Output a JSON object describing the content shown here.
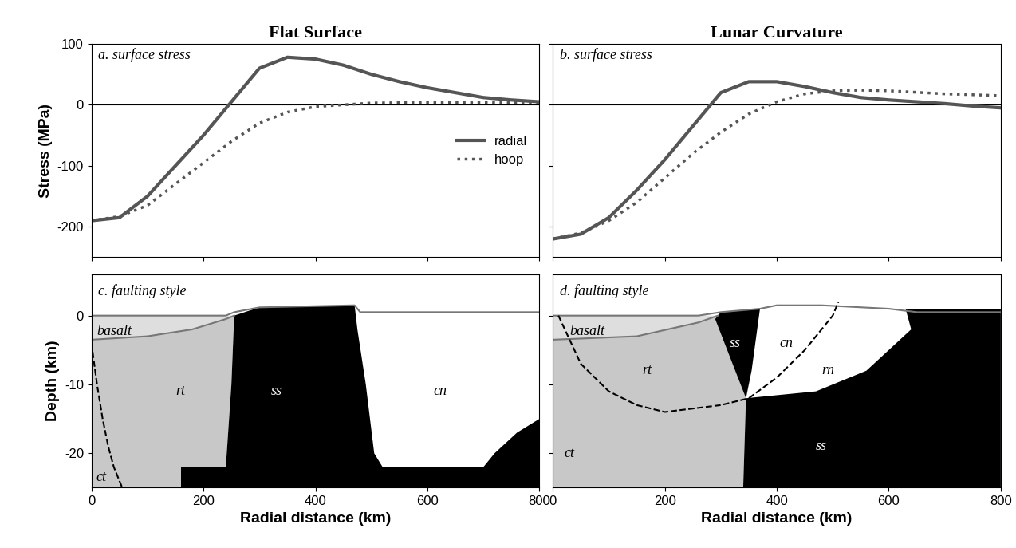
{
  "chart_data": [
    {
      "type": "line",
      "title": "Flat Surface",
      "ylabel": "Stress (MPa)",
      "xlim": [
        0,
        800
      ],
      "xticks": [
        0,
        200,
        400,
        600,
        800
      ],
      "ylim": [
        -250,
        100
      ],
      "yticks": [
        -200,
        -100,
        0,
        100
      ],
      "tick_labels": "y",
      "legend": "center right",
      "hlines": [
        0
      ],
      "annotations": [
        {
          "text": "a. surface stress",
          "x": 12,
          "y": 82,
          "color": "#000000"
        }
      ],
      "series": [
        {
          "name": "radial",
          "color": "#555555",
          "line_style": "solid",
          "x": [
            0,
            50,
            100,
            150,
            200,
            250,
            300,
            350,
            400,
            450,
            500,
            550,
            600,
            650,
            700,
            750,
            800
          ],
          "values": [
            -190,
            -185,
            -150,
            -100,
            -50,
            5,
            60,
            78,
            75,
            65,
            50,
            38,
            28,
            20,
            12,
            8,
            5
          ]
        },
        {
          "name": "hoop",
          "color": "#555555",
          "line_style": "dotted",
          "x": [
            0,
            50,
            100,
            150,
            200,
            250,
            300,
            350,
            400,
            450,
            500,
            600,
            700,
            800
          ],
          "values": [
            -190,
            -183,
            -165,
            -130,
            -95,
            -60,
            -30,
            -12,
            -3,
            0,
            3,
            4,
            4,
            3
          ]
        }
      ]
    },
    {
      "type": "line",
      "title": "Lunar Curvature",
      "xlim": [
        0,
        800
      ],
      "xticks": [
        0,
        200,
        400,
        600,
        800
      ],
      "ylim": [
        -250,
        100
      ],
      "yticks": [
        -200,
        -100,
        0,
        100
      ],
      "tick_labels": false,
      "hlines": [
        0
      ],
      "annotations": [
        {
          "text": "b. surface stress",
          "x": 12,
          "y": 82,
          "color": "#000000"
        }
      ],
      "series": [
        {
          "name": "radial",
          "color": "#555555",
          "line_style": "solid",
          "x": [
            0,
            50,
            100,
            150,
            200,
            250,
            300,
            350,
            400,
            450,
            500,
            550,
            600,
            650,
            700,
            750,
            800
          ],
          "values": [
            -220,
            -212,
            -185,
            -140,
            -90,
            -35,
            20,
            38,
            38,
            30,
            20,
            12,
            8,
            5,
            2,
            -2,
            -5
          ]
        },
        {
          "name": "hoop",
          "color": "#555555",
          "line_style": "dotted",
          "x": [
            0,
            50,
            100,
            150,
            200,
            250,
            300,
            350,
            400,
            450,
            500,
            550,
            600,
            700,
            800
          ],
          "values": [
            -220,
            -210,
            -190,
            -160,
            -120,
            -80,
            -45,
            -15,
            5,
            18,
            23,
            24,
            23,
            18,
            15
          ]
        }
      ]
    },
    {
      "type": "region",
      "xlabel": "Radial distance (km)",
      "ylabel": "Depth (km)",
      "xlim": [
        0,
        800
      ],
      "xticks": [
        0,
        200,
        400,
        600,
        800
      ],
      "ylim": [
        -25,
        6
      ],
      "yticks": [
        -20,
        -10,
        0
      ],
      "tick_labels": true,
      "regions": [
        {
          "color": "#c8c8c8",
          "x": [
            0,
            100,
            180,
            240,
            255,
            250,
            240,
            160,
            160,
            0
          ],
          "y": [
            -3.5,
            -3,
            -2,
            -0.5,
            0,
            -10,
            -22,
            -22,
            -25,
            -25
          ]
        },
        {
          "color": "#000000",
          "x": [
            255,
            300,
            470,
            475,
            490,
            505,
            520,
            700,
            720,
            760,
            800,
            800,
            160,
            160,
            240,
            250
          ],
          "y": [
            0,
            1.2,
            1.5,
            -2,
            -10,
            -20,
            -22,
            -22,
            -20,
            -17,
            -15,
            -25,
            -25,
            -22,
            -22,
            -10
          ]
        },
        {
          "color": "#dedede",
          "x": [
            0,
            240,
            255,
            240,
            180,
            100,
            0
          ],
          "y": [
            0,
            0,
            0,
            -0.5,
            -2,
            -3,
            -3.5
          ]
        }
      ],
      "lines": [
        {
          "color": "#777777",
          "line_style": "solid",
          "x": [
            0,
            240,
            255,
            300,
            470,
            480,
            800
          ],
          "y": [
            0,
            0,
            0.5,
            1.2,
            1.5,
            0.5,
            0.5
          ]
        },
        {
          "color": "#777777",
          "line_style": "solid",
          "x": [
            0,
            100,
            180,
            240,
            255
          ],
          "y": [
            -3.5,
            -3,
            -2,
            -0.5,
            0
          ]
        },
        {
          "color": "#000000",
          "line_style": "dashed",
          "x": [
            0,
            10,
            20,
            30,
            40,
            50,
            55
          ],
          "y": [
            -4,
            -10,
            -15,
            -19,
            -22,
            -24,
            -25
          ]
        }
      ],
      "annotations": [
        {
          "text": "c. faulting style",
          "x": 12,
          "y": 3.5,
          "color": "#000000"
        },
        {
          "text": "basalt",
          "x": 10,
          "y": -2.3,
          "color": "#000000"
        },
        {
          "text": "rt",
          "x": 150,
          "y": -11,
          "color": "#000000"
        },
        {
          "text": "ss",
          "x": 320,
          "y": -11,
          "color": "#ffffff"
        },
        {
          "text": "cn",
          "x": 610,
          "y": -11,
          "color": "#000000"
        },
        {
          "text": "ct",
          "x": 8,
          "y": -23.5,
          "color": "#000000"
        }
      ]
    },
    {
      "type": "region",
      "xlabel": "Radial distance (km)",
      "xlim": [
        0,
        800
      ],
      "xticks": [
        0,
        200,
        400,
        600,
        800
      ],
      "ylim": [
        -25,
        6
      ],
      "yticks": [
        -20,
        -10,
        0
      ],
      "tick_labels": "x",
      "regions": [
        {
          "color": "#c8c8c8",
          "x": [
            0,
            150,
            260,
            295,
            345,
            340,
            0
          ],
          "y": [
            -3.5,
            -3,
            -1,
            0,
            -12,
            -25,
            -25
          ]
        },
        {
          "color": "#000000",
          "x": [
            290,
            300,
            370,
            355,
            345
          ],
          "y": [
            -0.5,
            0.5,
            1,
            -8,
            -12
          ]
        },
        {
          "color": "#000000",
          "x": [
            345,
            470,
            560,
            640,
            630,
            800,
            800,
            340
          ],
          "y": [
            -12,
            -11,
            -8,
            -2,
            1,
            1,
            -25,
            -25
          ]
        },
        {
          "color": "#dedede",
          "x": [
            0,
            260,
            295,
            260,
            150,
            0
          ],
          "y": [
            0,
            0,
            0,
            -1,
            -3,
            -3.5
          ]
        }
      ],
      "lines": [
        {
          "color": "#777777",
          "line_style": "solid",
          "x": [
            0,
            260,
            300,
            370,
            400,
            480,
            600,
            650,
            800
          ],
          "y": [
            0,
            0,
            0.5,
            1,
            1.5,
            1.5,
            1,
            0.5,
            0.5
          ]
        },
        {
          "color": "#777777",
          "line_style": "solid",
          "x": [
            0,
            150,
            260,
            295
          ],
          "y": [
            -3.5,
            -3,
            -1,
            0
          ]
        },
        {
          "color": "#000000",
          "line_style": "dashed",
          "x": [
            10,
            50,
            100,
            150,
            200,
            250,
            300,
            350,
            400,
            450,
            500,
            510
          ],
          "y": [
            0,
            -7,
            -11,
            -13,
            -14,
            -13.5,
            -13,
            -12,
            -9,
            -5,
            0,
            2
          ]
        }
      ],
      "annotations": [
        {
          "text": "d. faulting style",
          "x": 12,
          "y": 3.5,
          "color": "#000000"
        },
        {
          "text": "basalt",
          "x": 30,
          "y": -2.3,
          "color": "#000000"
        },
        {
          "text": "rt",
          "x": 160,
          "y": -8,
          "color": "#000000"
        },
        {
          "text": "ct",
          "x": 20,
          "y": -20,
          "color": "#000000"
        },
        {
          "text": "ss",
          "x": 315,
          "y": -4,
          "color": "#ffffff"
        },
        {
          "text": "cn",
          "x": 405,
          "y": -4,
          "color": "#000000"
        },
        {
          "text": "rn",
          "x": 480,
          "y": -8,
          "color": "#000000"
        },
        {
          "text": "ss",
          "x": 470,
          "y": -19,
          "color": "#ffffff"
        }
      ]
    }
  ]
}
